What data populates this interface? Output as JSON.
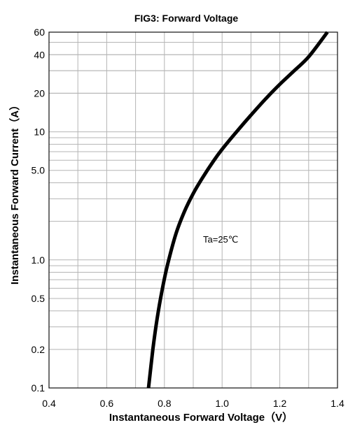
{
  "chart_data": {
    "type": "line",
    "title": "FIG3: Forward Voltage",
    "xlabel": "Instantaneous Forward Voltage（V）",
    "ylabel": "Instantaneous Forward Current（A）",
    "xlim": [
      0.4,
      1.4
    ],
    "ylim": [
      0.1,
      60
    ],
    "yscale": "log",
    "grid": true,
    "xticks": [
      "0.4",
      "0.6",
      "0.8",
      "1.0",
      "1.2",
      "1.4"
    ],
    "yticks": [
      "0.1",
      "0.2",
      "0.5",
      "1.0",
      "5.0",
      "10",
      "20",
      "40",
      "60"
    ],
    "annotation": "Ta=25℃",
    "series": [
      {
        "x": [
          0.745,
          0.76,
          0.775,
          0.79,
          0.81,
          0.84,
          0.87,
          0.9,
          0.93,
          0.97,
          1.0,
          1.05,
          1.1,
          1.15,
          1.2,
          1.25,
          1.3,
          1.365
        ],
        "y": [
          0.1,
          0.2,
          0.35,
          0.55,
          0.9,
          1.6,
          2.4,
          3.3,
          4.3,
          5.9,
          7.3,
          10,
          13.5,
          18,
          23.5,
          30,
          38.5,
          60
        ]
      }
    ]
  }
}
